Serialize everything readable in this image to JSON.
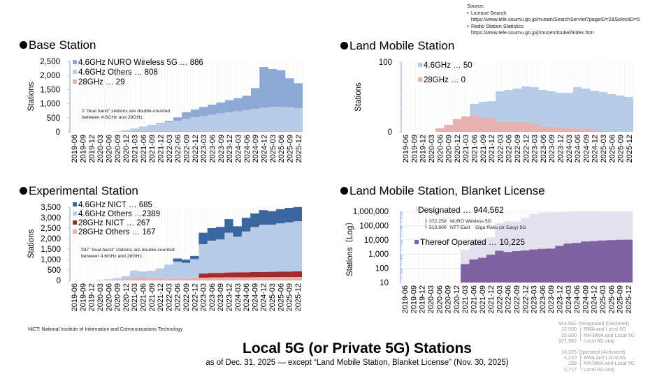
{
  "source": {
    "heading": "Source:",
    "items": [
      {
        "name": "License Search",
        "url": "https://www.tele.soumu.go.jp/musen/SearchServlet?pageID=2&SelectID=5"
      },
      {
        "name": "Radio Station Statistics",
        "url": "https://www.tele.soumu.go.jp/j/musen/toukei/index.htm"
      }
    ]
  },
  "footnote": "NICT: National Institute of Information and Communications Technology",
  "main_title": "Local 5G (or Private 5G) Stations",
  "subtitle": "as of Dec. 31, 2025 — except “Land Mobile Station, Blanket License” (Nov. 30, 2025)",
  "summary": {
    "designated": [
      {
        "value": "944,562",
        "label": "Designated (Declared)"
      },
      {
        "value": "12,580",
        "label": "├ BWA and Local 5G"
      },
      {
        "value": "10,000",
        "label": "├ NR-BWA and Local 5G"
      },
      {
        "value": "921,982",
        "label": "└ Local 5G only"
      }
    ],
    "operated": [
      {
        "value": "10,225",
        "label": "Operated (Activated)"
      },
      {
        "value": "4,210",
        "label": "├ BWA and Local 5G"
      },
      {
        "value": "298",
        "label": "├ NR-BWA and Local 5G"
      },
      {
        "value": "5,717",
        "label": "└ Local 5G only"
      }
    ]
  },
  "colors": {
    "blue_dark": "#3c66a0",
    "blue_mid": "#8eaad4",
    "blue_light": "#b7cce6",
    "red_dark": "#a52a2a",
    "red_light": "#e9b1b0",
    "purple": "#7f62a3",
    "lavender": "#e5e0ee",
    "grid": "#e3e3e3"
  },
  "x_ticks": [
    "2019-06",
    "2019-09",
    "2019-12",
    "2020-03",
    "2020-06",
    "2020-09",
    "2020-12",
    "2021-03",
    "2021-06",
    "2021-09",
    "2021-12",
    "2022-03",
    "2022-06",
    "2022-09",
    "2022-12",
    "2023-03",
    "2023-06",
    "2023-09",
    "2023-12",
    "2024-03",
    "2024-06",
    "2024-09",
    "2024-12",
    "2025-03",
    "2025-06",
    "2025-09",
    "2025-12"
  ],
  "chart_data": [
    {
      "id": "base",
      "type": "area",
      "stacked": true,
      "title": "Base Station",
      "xlabel": "",
      "ylabel": "Stations",
      "ylim": [
        0,
        2500
      ],
      "yticks": [
        "0",
        "500",
        "1,000",
        "1,500",
        "2,000",
        "2,500"
      ],
      "ytick_values": [
        0,
        500,
        1000,
        1500,
        2000,
        2500
      ],
      "legend_position": "top-left",
      "annotation": [
        "2 \"dual band\" stations are double-counted",
        "between 4.6GHz and 28GHz."
      ],
      "x": [
        "2019-06",
        "2019-09",
        "2019-12",
        "2020-03",
        "2020-06",
        "2020-09",
        "2020-12",
        "2021-03",
        "2021-06",
        "2021-09",
        "2021-12",
        "2022-03",
        "2022-06",
        "2022-09",
        "2022-12",
        "2023-03",
        "2023-06",
        "2023-09",
        "2023-12",
        "2024-03",
        "2024-06",
        "2024-09",
        "2024-12",
        "2025-03",
        "2025-06",
        "2025-09",
        "2025-12"
      ],
      "series": [
        {
          "name": "28GHz",
          "legend": "28GHz … 29",
          "color": "#e9b1b0",
          "values": [
            0,
            0,
            0,
            0,
            0,
            8,
            20,
            30,
            33,
            35,
            35,
            35,
            35,
            35,
            33,
            33,
            33,
            33,
            33,
            32,
            32,
            32,
            31,
            30,
            30,
            29,
            29
          ]
        },
        {
          "name": "4.6GHz Others",
          "legend": "4.6GHz Others … 808",
          "color": "#b7cce6",
          "values": [
            0,
            0,
            0,
            0,
            0,
            10,
            40,
            90,
            150,
            200,
            260,
            310,
            360,
            420,
            480,
            520,
            570,
            620,
            660,
            700,
            740,
            780,
            820,
            850,
            860,
            840,
            808
          ]
        },
        {
          "name": "4.6GHz NURO Wireless 5G",
          "legend": "4.6GHz NURO Wireless 5G … 886",
          "color": "#8eaad4",
          "values": [
            0,
            0,
            0,
            0,
            0,
            0,
            0,
            0,
            5,
            10,
            20,
            40,
            120,
            240,
            280,
            330,
            360,
            390,
            430,
            460,
            510,
            740,
            1450,
            1350,
            1300,
            1030,
            886
          ]
        }
      ]
    },
    {
      "id": "landmobile",
      "type": "area",
      "stacked": false,
      "title": "Land Mobile Station",
      "xlabel": "",
      "ylabel": "Stations",
      "ylim": [
        0,
        100
      ],
      "yticks": [
        "0",
        "100"
      ],
      "ytick_values": [
        0,
        100
      ],
      "legend_position": "top-left",
      "x": [
        "2019-06",
        "2019-09",
        "2019-12",
        "2020-03",
        "2020-06",
        "2020-09",
        "2020-12",
        "2021-03",
        "2021-06",
        "2021-09",
        "2021-12",
        "2022-03",
        "2022-06",
        "2022-09",
        "2022-12",
        "2023-03",
        "2023-06",
        "2023-09",
        "2023-12",
        "2024-03",
        "2024-06",
        "2024-09",
        "2024-12",
        "2025-03",
        "2025-06",
        "2025-09",
        "2025-12"
      ],
      "series": [
        {
          "name": "4.6GHz",
          "legend": "4.6GHz … 50",
          "color": "#b7cce6",
          "values": [
            0,
            0,
            0,
            0,
            0,
            0,
            0,
            0,
            40,
            43,
            44,
            58,
            60,
            62,
            65,
            64,
            60,
            58,
            56,
            56,
            64,
            62,
            59,
            57,
            54,
            52,
            50
          ]
        },
        {
          "name": "28GHz",
          "legend": "28GHz … 0",
          "color": "#e9b1b0",
          "values": [
            0,
            0,
            0,
            0,
            5,
            10,
            18,
            22,
            24,
            21,
            20,
            14,
            14,
            14,
            14,
            12,
            8,
            7,
            6,
            5,
            4,
            4,
            3,
            1,
            0,
            0,
            0
          ]
        }
      ]
    },
    {
      "id": "experimental",
      "type": "area",
      "stacked": true,
      "title": "Experimental Station",
      "xlabel": "",
      "ylabel": "Stations",
      "ylim": [
        0,
        3500
      ],
      "yticks": [
        "0",
        "500",
        "1,000",
        "1,500",
        "2,000",
        "2,500",
        "3,000",
        "3,500"
      ],
      "ytick_values": [
        0,
        500,
        1000,
        1500,
        2000,
        2500,
        3000,
        3500
      ],
      "legend_position": "top-left",
      "annotation": [
        "347 \"dual band\" stations are double-counted",
        "between 4.6GHz and 28GHz."
      ],
      "x": [
        "2019-06",
        "2019-09",
        "2019-12",
        "2020-03",
        "2020-06",
        "2020-09",
        "2020-12",
        "2021-03",
        "2021-06",
        "2021-09",
        "2021-12",
        "2022-03",
        "2022-06",
        "2022-09",
        "2022-12",
        "2023-03",
        "2023-06",
        "2023-09",
        "2023-12",
        "2024-03",
        "2024-06",
        "2024-09",
        "2024-12",
        "2025-03",
        "2025-06",
        "2025-09",
        "2025-12"
      ],
      "series": [
        {
          "name": "28GHz Others",
          "legend": "28GHz Others … 167",
          "color": "#e9b1b0",
          "values": [
            0,
            0,
            5,
            10,
            20,
            40,
            80,
            120,
            150,
            130,
            120,
            110,
            100,
            90,
            120,
            130,
            140,
            140,
            150,
            150,
            150,
            155,
            160,
            160,
            165,
            165,
            167
          ]
        },
        {
          "name": "28GHz NICT",
          "legend": "28GHz NICT … 267",
          "color": "#a52a2a",
          "values": [
            0,
            0,
            0,
            0,
            0,
            0,
            0,
            0,
            0,
            0,
            0,
            0,
            0,
            0,
            0,
            200,
            210,
            220,
            230,
            235,
            240,
            245,
            250,
            255,
            260,
            262,
            267
          ]
        },
        {
          "name": "4.6GHz Others",
          "legend": "4.6GHz Others …2389",
          "color": "#b7cce6",
          "values": [
            0,
            0,
            5,
            20,
            40,
            70,
            120,
            350,
            280,
            330,
            450,
            650,
            800,
            750,
            900,
            1400,
            1550,
            1600,
            1900,
            1700,
            1950,
            2150,
            2250,
            2250,
            2300,
            2350,
            2389
          ]
        },
        {
          "name": "4.6GHz NICT",
          "legend": "4.6GHz NICT … 685",
          "color": "#3c66a0",
          "values": [
            0,
            0,
            0,
            0,
            0,
            0,
            0,
            0,
            0,
            0,
            0,
            0,
            150,
            150,
            150,
            550,
            600,
            600,
            650,
            500,
            650,
            650,
            700,
            650,
            680,
            690,
            685
          ]
        }
      ]
    },
    {
      "id": "blanket",
      "type": "area",
      "stacked": false,
      "log_scale": true,
      "title": "Land Mobile Station, Blanket License",
      "xlabel": "",
      "ylabel": "Stations〔Log〕",
      "ylim": [
        10,
        1000000
      ],
      "yticks": [
        "10",
        "100",
        "1,000",
        "10,000",
        "100,000",
        "1,000,000"
      ],
      "ytick_values": [
        10,
        100,
        1000,
        10000,
        100000,
        1000000
      ],
      "legend_position": "top-left",
      "annotations": [
        {
          "value": "372,250",
          "label": "NURO Wireless 5G"
        },
        {
          "value": "513,600",
          "label": "NTT East",
          "label2_pre": "Giga ",
          "label2_em": "Raku",
          "label2_post": " (or Easy) 5G"
        }
      ],
      "x": [
        "2019-06",
        "2019-09",
        "2019-12",
        "2020-03",
        "2020-06",
        "2020-09",
        "2020-12",
        "2021-03",
        "2021-06",
        "2021-09",
        "2021-12",
        "2022-03",
        "2022-06",
        "2022-09",
        "2022-12",
        "2023-03",
        "2023-06",
        "2023-09",
        "2023-12",
        "2024-03",
        "2024-06",
        "2024-09",
        "2024-12",
        "2025-03",
        "2025-06",
        "2025-09",
        "2025-12"
      ],
      "series": [
        {
          "name": "Designated",
          "legend": "Designated … 944,562",
          "color": "#e5e0ee",
          "values": [
            null,
            null,
            null,
            null,
            null,
            null,
            null,
            2000,
            9000,
            12000,
            15000,
            150000,
            200000,
            200000,
            350000,
            650000,
            800000,
            850000,
            880000,
            900000,
            910000,
            920000,
            930000,
            935000,
            940000,
            944000,
            944562
          ]
        },
        {
          "name": "Thereof Operated",
          "legend": "Thereof Operated … 10,225",
          "color": "#7f62a3",
          "values": [
            null,
            null,
            null,
            null,
            null,
            null,
            null,
            200,
            420,
            550,
            900,
            1700,
            1400,
            1600,
            1800,
            2100,
            2300,
            2400,
            3800,
            5500,
            6000,
            7500,
            8200,
            9000,
            9600,
            10000,
            10225
          ]
        }
      ]
    }
  ]
}
